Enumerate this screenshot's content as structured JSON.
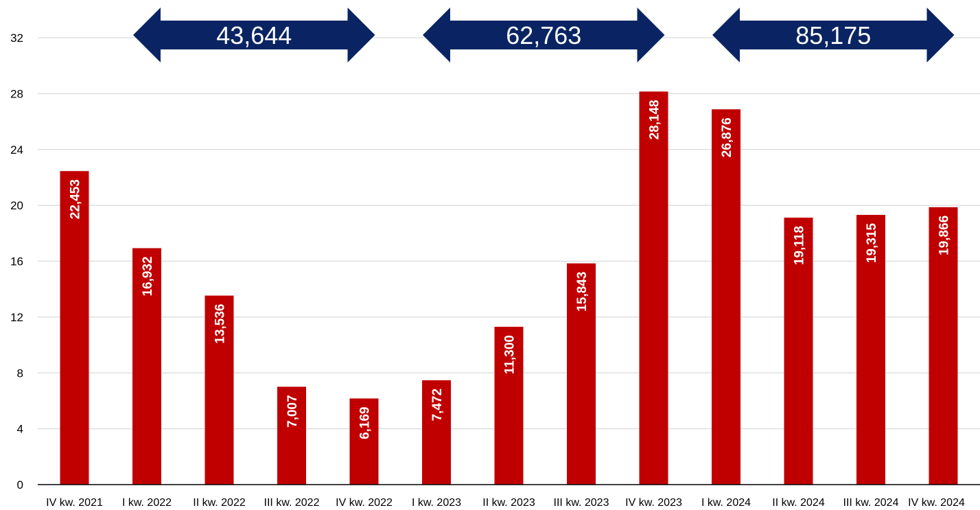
{
  "chart_data": {
    "type": "bar",
    "categories": [
      "IV kw. 2021",
      "I kw. 2022",
      "II kw. 2022",
      "III kw. 2022",
      "IV kw. 2022",
      "I kw. 2023",
      "II kw. 2023",
      "III kw. 2023",
      "IV kw. 2023",
      "I kw. 2024",
      "II kw. 2024",
      "III kw. 2024",
      "IV kw. 2024"
    ],
    "values": [
      22.453,
      16.932,
      13.536,
      7.007,
      6.169,
      7.472,
      11.3,
      15.843,
      28.148,
      26.876,
      19.118,
      19.315,
      19.866
    ],
    "value_labels": [
      "22,453",
      "16,932",
      "13,536",
      "7,007",
      "6,169",
      "7,472",
      "11,300",
      "15,843",
      "28,148",
      "26,876",
      "19,118",
      "19,315",
      "19,866"
    ],
    "ylim": [
      0,
      32
    ],
    "yticks": [
      "0",
      "4",
      "8",
      "12",
      "16",
      "20",
      "24",
      "28",
      "32"
    ],
    "grid": true,
    "bar_color": "#c00000",
    "annotations": [
      {
        "label": "43,644",
        "span": [
          "I kw. 2022",
          "IV kw. 2022"
        ]
      },
      {
        "label": "62,763",
        "span": [
          "I kw. 2023",
          "IV kw. 2023"
        ]
      },
      {
        "label": "85,175",
        "span": [
          "I kw. 2024",
          "IV kw. 2024"
        ]
      }
    ],
    "annotation_color": "#0a2463"
  }
}
